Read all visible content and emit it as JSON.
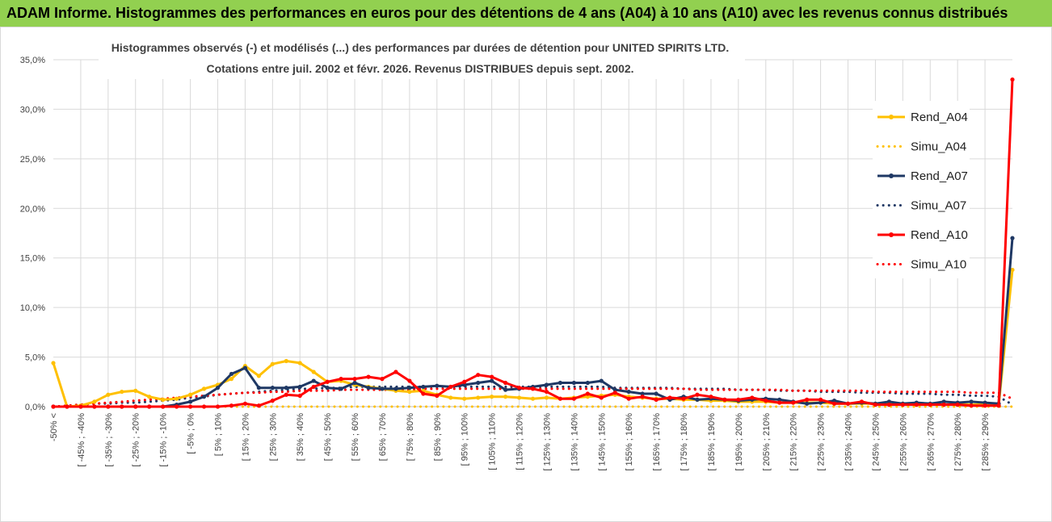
{
  "header": {
    "title": "ADAM Informe. Histogrammes des performances en euros pour des détentions de 4 ans (A04) à 10 ans (A10) avec les revenus connus distribués"
  },
  "colors": {
    "header_bg": "#92d050",
    "A04": "#ffc000",
    "A07": "#1f3864",
    "A10": "#ff0000",
    "grid": "#d9d9d9"
  },
  "chart_data": {
    "type": "line",
    "title_line1": "Histogrammes observés (-) et modélisés (...) des performances par durées de détention pour UNITED SPIRITS LTD.",
    "title_line2": "Cotations entre juil. 2002 et févr. 2026. Revenus DISTRIBUES depuis sept. 2002.",
    "ylim": [
      0,
      35
    ],
    "yticks": [
      "0,0%",
      "5,0%",
      "10,0%",
      "15,0%",
      "20,0%",
      "25,0%",
      "30,0%",
      "35,0%"
    ],
    "x_labels": [
      "-50% <",
      "[ -45% ; -40%",
      "[ -35% ; -30%",
      "[ -25% ; -20%",
      "[ -15% ; -10%",
      "[ -5% ; 0%",
      "[ 5% ; 10%",
      "[ 15% ; 20%",
      "[ 25% ; 30%",
      "[ 35% ; 40%",
      "[ 45% ; 50%",
      "[ 55% ; 60%",
      "[ 65% ; 70%",
      "[ 75% ; 80%",
      "[ 85% ; 90%",
      "[ 95% ; 100%",
      "[ 105% ; 110%",
      "[ 115% ; 120%",
      "[ 125% ; 130%",
      "[ 135% ; 140%",
      "[ 145% ; 150%",
      "[ 155% ; 160%",
      "[ 165% ; 170%",
      "[ 175% ; 180%",
      "[ 185% ; 190%",
      "[ 195% ; 200%",
      "[ 205% ; 210%",
      "[ 215% ; 220%",
      "[ 225% ; 230%",
      "[ 235% ; 240%",
      "[ 245% ; 250%",
      "[ 255% ; 260%",
      "[ 265% ; 270%",
      "[ 275% ; 280%",
      "[ 285% ; 290%"
    ],
    "series": [
      {
        "name": "Rend_A04",
        "style": "solid",
        "color": "#ffc000",
        "values": [
          4.4,
          0,
          0.1,
          0.5,
          1.2,
          1.5,
          1.6,
          1.0,
          0.7,
          0.8,
          1.2,
          1.8,
          2.2,
          2.8,
          4.1,
          3.1,
          4.3,
          4.6,
          4.4,
          3.5,
          2.5,
          2.6,
          2.2,
          2.0,
          1.8,
          1.6,
          1.5,
          1.6,
          1.2,
          0.9,
          0.8,
          0.9,
          1.0,
          1.0,
          0.9,
          0.8,
          0.9,
          0.8,
          0.9,
          1.0,
          1.1,
          1.2,
          1.0,
          0.9,
          0.8,
          0.8,
          0.7,
          0.7,
          0.6,
          0.6,
          0.5,
          0.5,
          0.5,
          0.4,
          0.4,
          0.4,
          0.4,
          0.3,
          0.3,
          0.3,
          0.3,
          0.3,
          0.3,
          0.2,
          0.2,
          0.2,
          0.2,
          0.2,
          0.2,
          0.1,
          13.8
        ]
      },
      {
        "name": "Simu_A04",
        "style": "dotted",
        "color": "#ffc000",
        "values": [
          0,
          0,
          0,
          0,
          0,
          0,
          0,
          0,
          0,
          0,
          0,
          0,
          0,
          0,
          0,
          0,
          0,
          0,
          0,
          0,
          0,
          0,
          0,
          0,
          0,
          0,
          0,
          0,
          0,
          0,
          0,
          0,
          0,
          0,
          0,
          0,
          0,
          0,
          0,
          0,
          0,
          0,
          0,
          0,
          0,
          0,
          0,
          0,
          0,
          0,
          0,
          0,
          0,
          0,
          0,
          0,
          0,
          0,
          0,
          0,
          0,
          0,
          0,
          0,
          0,
          0,
          0,
          0,
          0,
          0,
          0
        ]
      },
      {
        "name": "Rend_A07",
        "style": "solid",
        "color": "#1f3864",
        "values": [
          0,
          0,
          0,
          0,
          0,
          0,
          0,
          0,
          0,
          0.2,
          0.5,
          1.0,
          1.9,
          3.3,
          3.9,
          1.9,
          1.9,
          1.9,
          2.0,
          2.6,
          1.9,
          1.8,
          2.4,
          1.9,
          1.8,
          1.8,
          1.9,
          2.0,
          2.1,
          2.0,
          2.2,
          2.4,
          2.6,
          1.7,
          1.8,
          2.0,
          2.2,
          2.4,
          2.4,
          2.4,
          2.6,
          1.7,
          1.5,
          1.3,
          1.3,
          0.7,
          1.0,
          0.7,
          0.8,
          0.7,
          0.6,
          0.7,
          0.8,
          0.7,
          0.5,
          0.3,
          0.4,
          0.6,
          0.3,
          0.4,
          0.3,
          0.5,
          0.3,
          0.4,
          0.3,
          0.5,
          0.4,
          0.5,
          0.4,
          0.3,
          17.0
        ]
      },
      {
        "name": "Simu_A07",
        "style": "dotted",
        "color": "#1f3864",
        "values": [
          0,
          0.1,
          0.2,
          0.3,
          0.3,
          0.4,
          0.4,
          0.5,
          0.6,
          0.7,
          0.9,
          1.0,
          1.2,
          1.3,
          1.4,
          1.5,
          1.6,
          1.7,
          1.8,
          1.8,
          1.9,
          1.9,
          2.0,
          2.0,
          2.0,
          2.0,
          2.0,
          2.0,
          2.0,
          2.0,
          2.0,
          2.0,
          2.0,
          2.0,
          2.0,
          2.0,
          2.0,
          2.0,
          2.0,
          2.0,
          2.0,
          1.9,
          1.9,
          1.9,
          1.9,
          1.9,
          1.8,
          1.8,
          1.8,
          1.8,
          1.7,
          1.7,
          1.7,
          1.6,
          1.6,
          1.6,
          1.5,
          1.5,
          1.5,
          1.4,
          1.4,
          1.4,
          1.3,
          1.3,
          1.3,
          1.2,
          1.2,
          1.1,
          1.1,
          1.0,
          0.2
        ]
      },
      {
        "name": "Rend_A10",
        "style": "solid",
        "color": "#ff0000",
        "values": [
          0,
          0,
          0,
          0,
          0,
          0,
          0,
          0,
          0,
          0,
          0,
          0,
          0,
          0.1,
          0.3,
          0.1,
          0.6,
          1.2,
          1.1,
          2.0,
          2.5,
          2.8,
          2.8,
          3.0,
          2.8,
          3.5,
          2.6,
          1.3,
          1.1,
          2.0,
          2.5,
          3.2,
          3.0,
          2.4,
          1.9,
          1.8,
          1.5,
          0.8,
          0.8,
          1.3,
          0.9,
          1.4,
          0.8,
          1.0,
          0.7,
          0.9,
          0.8,
          1.2,
          1.0,
          0.7,
          0.7,
          0.9,
          0.6,
          0.4,
          0.4,
          0.7,
          0.7,
          0.3,
          0.3,
          0.5,
          0.2,
          0.2,
          0.2,
          0.2,
          0.2,
          0.2,
          0.2,
          0.1,
          0.1,
          0.1,
          33.0
        ]
      },
      {
        "name": "Simu_A10",
        "style": "dotted",
        "color": "#ff0000",
        "values": [
          0,
          0.1,
          0.2,
          0.3,
          0.4,
          0.5,
          0.6,
          0.7,
          0.8,
          0.9,
          1.0,
          1.1,
          1.2,
          1.3,
          1.4,
          1.4,
          1.5,
          1.5,
          1.6,
          1.6,
          1.6,
          1.7,
          1.7,
          1.7,
          1.7,
          1.7,
          1.7,
          1.8,
          1.8,
          1.8,
          1.8,
          1.8,
          1.8,
          1.8,
          1.8,
          1.8,
          1.8,
          1.8,
          1.8,
          1.8,
          1.8,
          1.8,
          1.8,
          1.8,
          1.8,
          1.8,
          1.8,
          1.7,
          1.7,
          1.7,
          1.7,
          1.7,
          1.7,
          1.7,
          1.6,
          1.6,
          1.6,
          1.6,
          1.6,
          1.6,
          1.5,
          1.5,
          1.5,
          1.5,
          1.5,
          1.5,
          1.5,
          1.4,
          1.4,
          1.4,
          0.8
        ]
      }
    ],
    "legend": [
      "Rend_A04",
      "Simu_A04",
      "Rend_A07",
      "Simu_A07",
      "Rend_A10",
      "Simu_A10"
    ],
    "legend_position": "right"
  }
}
